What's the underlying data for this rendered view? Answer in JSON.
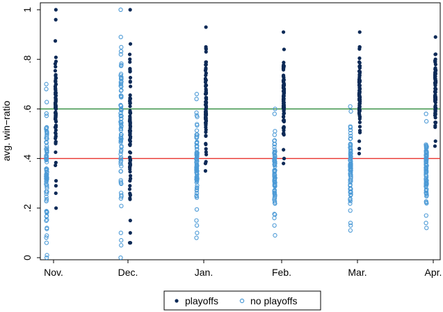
{
  "chart_data": {
    "type": "scatter",
    "title": "",
    "xlabel": "",
    "ylabel": "avg. win−ratio",
    "categories": [
      "Nov.",
      "Dec.",
      "Jan.",
      "Feb.",
      "Mar.",
      "Apr."
    ],
    "ylim": [
      0,
      1
    ],
    "yticks": [
      0,
      0.2,
      0.4,
      0.6,
      0.8,
      1
    ],
    "ytick_labels": [
      "0",
      ".2",
      ".4",
      ".6",
      ".8",
      "1"
    ],
    "grid": false,
    "legend_position": "bottom",
    "reference_lines": [
      {
        "y": 0.6,
        "color": "#2e8b3a"
      },
      {
        "y": 0.4,
        "color": "#e8322d"
      }
    ],
    "series": [
      {
        "name": "playoffs",
        "marker": "filled-circle",
        "color": "#0d2a57",
        "ranges": [
          {
            "category": "Nov.",
            "min": 0.2,
            "max": 1.0,
            "extra": [
              0.26,
              0.29,
              0.31,
              0.96
            ]
          },
          {
            "category": "Dec.",
            "min": 0.06,
            "max": 1.0,
            "extra": [
              0.06,
              0.1,
              0.15,
              0.24,
              0.29,
              0.31
            ]
          },
          {
            "category": "Jan.",
            "min": 0.35,
            "max": 0.93,
            "extra": [
              0.38,
              0.85
            ]
          },
          {
            "category": "Feb.",
            "min": 0.38,
            "max": 0.91,
            "extra": [
              0.4,
              0.84
            ]
          },
          {
            "category": "Mar.",
            "min": 0.42,
            "max": 0.91,
            "extra": [
              0.44,
              0.85
            ]
          },
          {
            "category": "Apr.",
            "min": 0.45,
            "max": 0.89,
            "extra": [
              0.47,
              0.82
            ]
          }
        ]
      },
      {
        "name": "no playoffs",
        "marker": "hollow-circle",
        "color": "#4c9ad6",
        "ranges": [
          {
            "category": "Nov.",
            "min": 0.0,
            "max": 0.7,
            "extra": [
              0.01,
              0.06,
              0.12,
              0.68
            ]
          },
          {
            "category": "Dec.",
            "min": 0.0,
            "max": 1.0,
            "extra": [
              0.05,
              0.07,
              0.1,
              0.89,
              0.7
            ]
          },
          {
            "category": "Jan.",
            "min": 0.08,
            "max": 0.66,
            "extra": [
              0.1,
              0.13,
              0.15,
              0.64
            ]
          },
          {
            "category": "Feb.",
            "min": 0.09,
            "max": 0.6,
            "extra": [
              0.13,
              0.16,
              0.58
            ]
          },
          {
            "category": "Mar.",
            "min": 0.11,
            "max": 0.61,
            "extra": [
              0.13,
              0.14,
              0.19,
              0.59
            ]
          },
          {
            "category": "Apr.",
            "min": 0.12,
            "max": 0.58,
            "extra": [
              0.14,
              0.17,
              0.55
            ]
          }
        ]
      }
    ]
  }
}
